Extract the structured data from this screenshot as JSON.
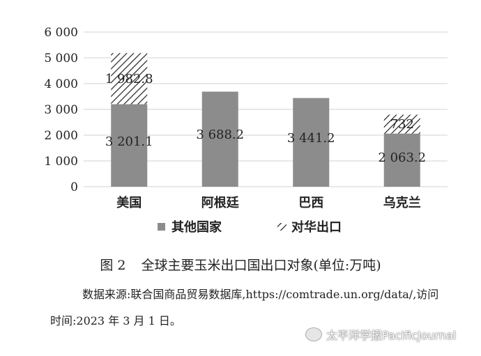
{
  "chart_data": {
    "type": "bar",
    "stacked": true,
    "categories": [
      "美国",
      "阿根廷",
      "巴西",
      "乌克兰"
    ],
    "series": [
      {
        "name": "其他国家",
        "values": [
          3201.1,
          3688.2,
          3441.2,
          2063.2
        ],
        "data_labels": [
          "3 201.1",
          "3 688.2",
          "3 441.2",
          "2 063.2"
        ],
        "color": "#8c8c8c",
        "pattern": "solid"
      },
      {
        "name": "对华出口",
        "values": [
          1982.8,
          0,
          0,
          732
        ],
        "data_labels": [
          "1 982.8",
          "",
          "",
          "732"
        ],
        "color": "#222222",
        "pattern": "hatch"
      }
    ],
    "yticks": [
      "0",
      "1 000",
      "2 000",
      "3 000",
      "4 000",
      "5 000",
      "6 000"
    ],
    "ylim": [
      0,
      6000
    ],
    "grid": true,
    "legend_position": "bottom"
  },
  "caption": {
    "number": "图 2",
    "text": "全球主要玉米出口国出口对象(单位:万吨)"
  },
  "source": "数据来源:联合国商品贸易数据库,https://comtrade.un.org/data/,访问时间:2023 年 3 月 1 日。",
  "watermark": "太平洋学报PacificJournal"
}
